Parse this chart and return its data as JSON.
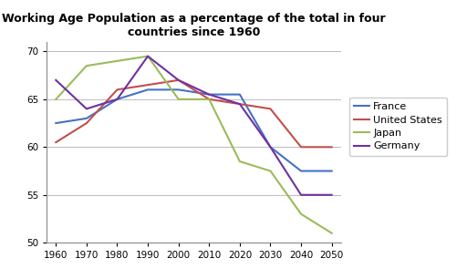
{
  "title": "Working Age Population as a percentage of the total in four\ncountries since 1960",
  "years": [
    1960,
    1970,
    1980,
    1990,
    2000,
    2010,
    2020,
    2030,
    2040,
    2050
  ],
  "series": {
    "France": {
      "values": [
        62.5,
        63,
        65,
        66,
        66,
        65.5,
        65.5,
        60,
        57.5,
        57.5
      ],
      "color": "#4472C4"
    },
    "United States": {
      "values": [
        60.5,
        62.5,
        66,
        66.5,
        67,
        65,
        64.5,
        64,
        60,
        60
      ],
      "color": "#C0504D"
    },
    "Japan": {
      "values": [
        65,
        68.5,
        69,
        69.5,
        65,
        65,
        58.5,
        57.5,
        53,
        51
      ],
      "color": "#9BBB59"
    },
    "Germany": {
      "values": [
        67,
        64,
        65,
        69.5,
        67,
        65.5,
        64.5,
        60,
        55,
        55
      ],
      "color": "#7030A0"
    }
  },
  "xlim": [
    1957,
    2053
  ],
  "ylim": [
    50,
    71
  ],
  "yticks": [
    50,
    55,
    60,
    65,
    70
  ],
  "xticks": [
    1960,
    1970,
    1980,
    1990,
    2000,
    2010,
    2020,
    2030,
    2040,
    2050
  ],
  "background_color": "#ffffff",
  "grid_color": "#bbbbbb",
  "title_fontsize": 9,
  "legend_fontsize": 8,
  "tick_fontsize": 7.5
}
